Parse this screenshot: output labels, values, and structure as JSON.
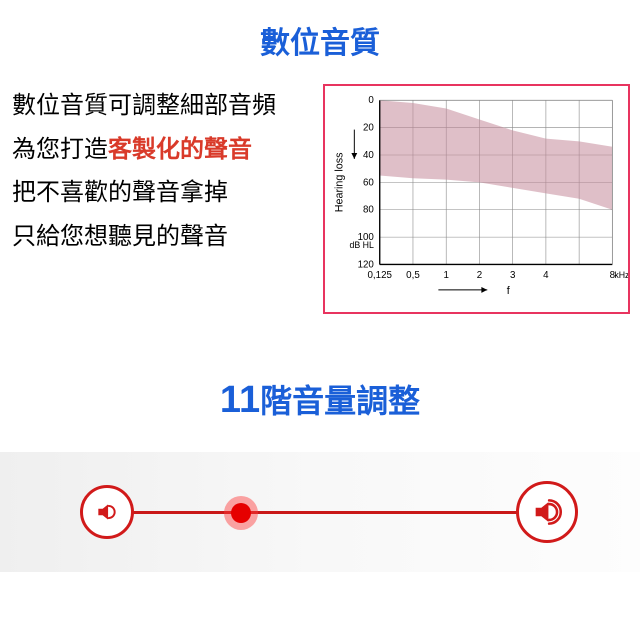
{
  "colors": {
    "title_blue": "#1a5fd8",
    "highlight_red": "#d93a2a",
    "text_black": "#000000",
    "chart_border": "#e8345f",
    "chart_fill": "#c48a9a",
    "chart_fill_opacity": 0.55,
    "chart_grid": "#888888",
    "chart_axis": "#000000",
    "slider_line": "#c91818",
    "speaker_border": "#d11a1a",
    "speaker_fill": "#d11a1a",
    "knob_outer": "#ff3a3a",
    "knob_inner": "#e60000",
    "slider_bg_start": "#efefef"
  },
  "section1": {
    "title": "數位音質",
    "line1": "數位音質可調整細部音頻",
    "line2a": "為您打造",
    "line2b": "客製化的聲音",
    "line3": "把不喜歡的聲音拿掉",
    "line4": "只給您想聽見的聲音"
  },
  "chart": {
    "type": "area",
    "y_label": "Hearing loss",
    "y_unit": "dB HL",
    "x_label": "f",
    "x_unit": "kHz",
    "x_ticks": [
      "0,125",
      "0,5",
      "1",
      "2",
      "3",
      "4",
      "",
      "8"
    ],
    "y_ticks": [
      0,
      20,
      40,
      60,
      80,
      100,
      120
    ],
    "y_range": [
      0,
      120
    ],
    "band_upper": [
      0,
      2,
      6,
      14,
      22,
      28,
      30,
      34
    ],
    "band_lower": [
      55,
      57,
      58,
      60,
      64,
      68,
      72,
      80
    ],
    "font_size_axis": 10
  },
  "section2": {
    "title_num": "11",
    "title_text": "階音量調整"
  },
  "slider": {
    "position_pct": 26
  }
}
